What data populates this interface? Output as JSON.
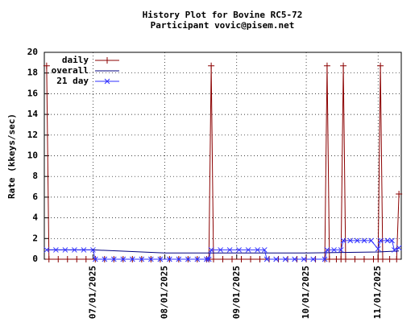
{
  "chart_data": {
    "type": "line",
    "title": "History Plot for Bovine RC5-72",
    "subtitle": "Participant vovic@pisem.net",
    "y_label": "Rate (kkeys/sec)",
    "xlim": [
      "2025-06-10",
      "2025-11-11"
    ],
    "xticks": [
      {
        "value": "2025-07-01",
        "label": "07/01/2025"
      },
      {
        "value": "2025-08-01",
        "label": "08/01/2025"
      },
      {
        "value": "2025-09-01",
        "label": "09/01/2025"
      },
      {
        "value": "2025-10-01",
        "label": "10/01/2025"
      },
      {
        "value": "2025-11-01",
        "label": "11/01/2025"
      }
    ],
    "ylim": [
      0,
      20
    ],
    "yticks": [
      0,
      2,
      4,
      6,
      8,
      10,
      12,
      14,
      16,
      18,
      20
    ],
    "grid": true,
    "legend": "top-left",
    "series": [
      {
        "name": "daily",
        "color": "#8b0000",
        "marker": "+",
        "x": [
          "2025-06-11",
          "2025-06-12",
          "2025-06-16",
          "2025-06-20",
          "2025-06-24",
          "2025-06-28",
          "2025-07-02",
          "2025-07-06",
          "2025-07-10",
          "2025-07-14",
          "2025-07-18",
          "2025-07-22",
          "2025-07-26",
          "2025-07-30",
          "2025-08-03",
          "2025-08-07",
          "2025-08-11",
          "2025-08-15",
          "2025-08-19",
          "2025-08-20",
          "2025-08-21",
          "2025-08-22",
          "2025-08-26",
          "2025-08-30",
          "2025-09-03",
          "2025-09-07",
          "2025-09-11",
          "2025-09-15",
          "2025-09-19",
          "2025-09-23",
          "2025-09-27",
          "2025-10-01",
          "2025-10-05",
          "2025-10-09",
          "2025-10-10",
          "2025-10-11",
          "2025-10-14",
          "2025-10-16",
          "2025-10-17",
          "2025-10-18",
          "2025-10-22",
          "2025-10-26",
          "2025-10-30",
          "2025-11-01",
          "2025-11-02",
          "2025-11-03",
          "2025-11-06",
          "2025-11-09",
          "2025-11-10"
        ],
        "values": [
          18.7,
          0,
          0,
          0,
          0,
          0,
          0,
          0,
          0,
          0,
          0,
          0,
          0,
          0,
          0,
          0,
          0,
          0,
          0,
          0,
          18.7,
          0,
          0,
          0,
          0,
          0,
          0,
          0,
          0,
          0,
          0,
          0,
          0,
          0,
          18.7,
          0,
          0,
          0,
          18.7,
          0,
          0,
          0,
          0,
          0,
          18.7,
          0,
          0,
          0,
          6.3
        ]
      },
      {
        "name": "overall",
        "color": "#000080",
        "x": [
          "2025-06-11",
          "2025-07-01",
          "2025-08-01",
          "2025-09-01",
          "2025-10-01",
          "2025-11-01",
          "2025-11-10"
        ],
        "values": [
          0.9,
          0.9,
          0.6,
          0.6,
          0.6,
          0.7,
          0.8
        ]
      },
      {
        "name": "21 day",
        "color": "#3030ff",
        "marker": "x",
        "x": [
          "2025-06-11",
          "2025-06-15",
          "2025-06-19",
          "2025-06-23",
          "2025-06-27",
          "2025-07-01",
          "2025-07-02",
          "2025-07-06",
          "2025-07-10",
          "2025-07-14",
          "2025-07-18",
          "2025-07-22",
          "2025-07-26",
          "2025-07-30",
          "2025-08-03",
          "2025-08-07",
          "2025-08-11",
          "2025-08-15",
          "2025-08-19",
          "2025-08-20",
          "2025-08-21",
          "2025-08-25",
          "2025-08-29",
          "2025-09-02",
          "2025-09-06",
          "2025-09-10",
          "2025-09-13",
          "2025-09-14",
          "2025-09-18",
          "2025-09-22",
          "2025-09-26",
          "2025-09-30",
          "2025-10-04",
          "2025-10-09",
          "2025-10-10",
          "2025-10-13",
          "2025-10-16",
          "2025-10-17",
          "2025-10-20",
          "2025-10-23",
          "2025-10-26",
          "2025-10-29",
          "2025-11-01",
          "2025-11-02",
          "2025-11-05",
          "2025-11-07",
          "2025-11-08",
          "2025-11-10"
        ],
        "values": [
          0.9,
          0.9,
          0.9,
          0.9,
          0.9,
          0.9,
          0,
          0,
          0,
          0,
          0,
          0,
          0,
          0,
          0,
          0,
          0,
          0,
          0,
          0,
          0.9,
          0.9,
          0.9,
          0.9,
          0.9,
          0.9,
          0.9,
          0,
          0,
          0,
          0,
          0,
          0,
          0,
          0.9,
          0.9,
          0.9,
          1.8,
          1.8,
          1.8,
          1.8,
          1.8,
          1.0,
          1.8,
          1.8,
          1.8,
          0.9,
          1.1
        ]
      }
    ]
  }
}
